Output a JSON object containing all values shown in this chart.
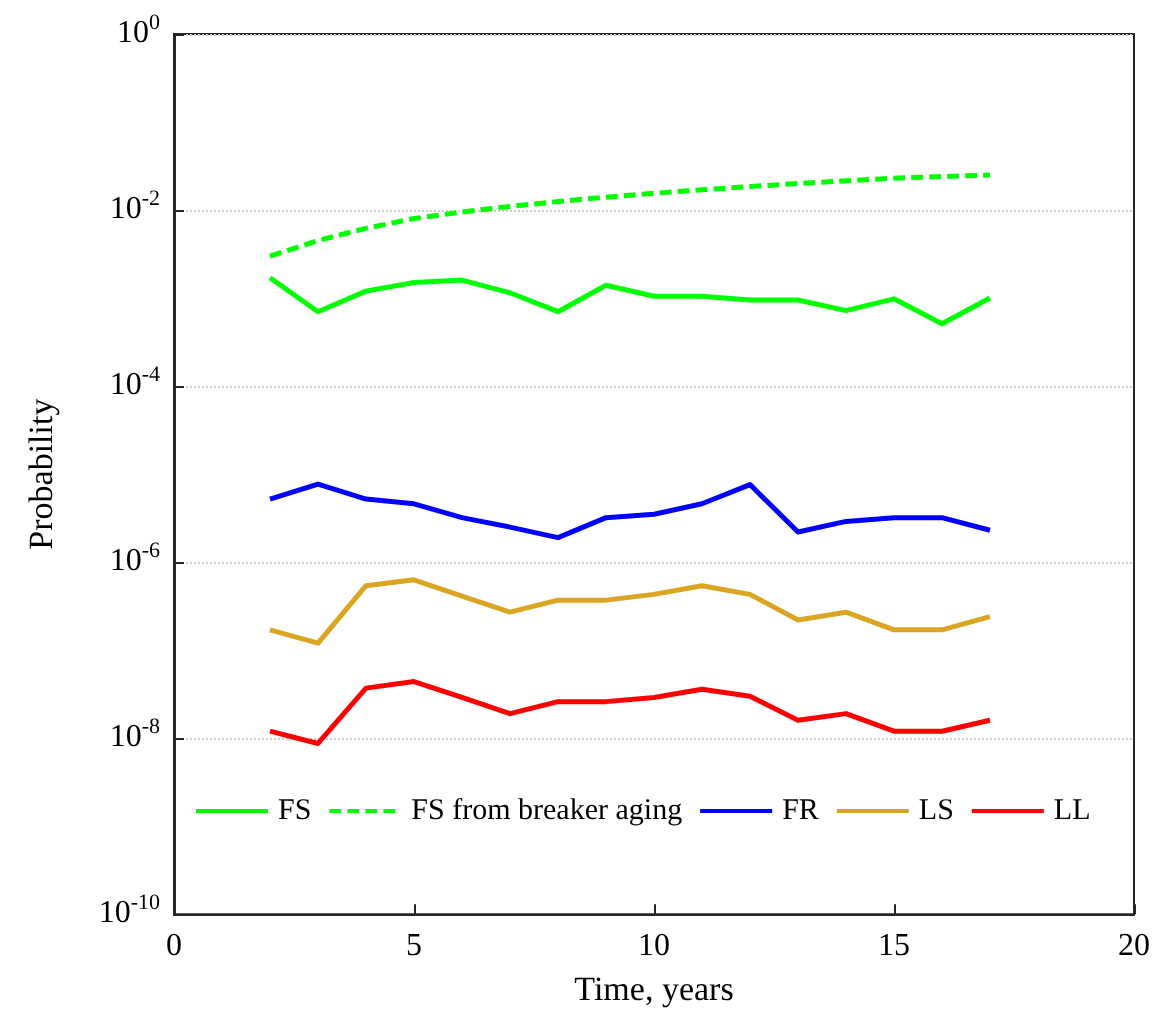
{
  "chart_data": {
    "type": "line",
    "xlabel": "Time, years",
    "ylabel": "Probability",
    "x": [
      2,
      3,
      4,
      5,
      6,
      7,
      8,
      9,
      10,
      11,
      12,
      13,
      14,
      15,
      16,
      17
    ],
    "xlim": [
      0,
      20
    ],
    "xticks": [
      0,
      5,
      10,
      15,
      20
    ],
    "log": "y",
    "ylim": [
      1e-10,
      1
    ],
    "yticks": [
      {
        "value": 1e-10,
        "label": "10$^{-10}$"
      },
      {
        "value": 1e-08,
        "label": "10$^{-8}$"
      },
      {
        "value": 1e-06,
        "label": "10$^{-6}$"
      },
      {
        "value": 0.0001,
        "label": "10$^{-4}$"
      },
      {
        "value": 0.01,
        "label": "10$^{-2}$"
      },
      {
        "value": 1,
        "label": "10$^{0}$"
      }
    ],
    "grid": "y",
    "legend": "bottom",
    "marker": "none",
    "series": [
      {
        "name": "FS",
        "color": "#00ff00",
        "line_style": "solid",
        "values": [
          0.0017,
          0.0007,
          0.0012,
          0.0015,
          0.0016,
          0.00115,
          0.0007,
          0.0014,
          0.00105,
          0.00105,
          0.00095,
          0.00095,
          0.00072,
          0.00098,
          0.00051,
          0.001
        ]
      },
      {
        "name": "FS from breaker aging",
        "color": "#00ff00",
        "line_style": "dashed",
        "values": [
          0.003,
          0.0045,
          0.0062,
          0.008,
          0.0095,
          0.011,
          0.0125,
          0.014,
          0.0155,
          0.017,
          0.0185,
          0.02,
          0.0215,
          0.023,
          0.024,
          0.025
        ]
      },
      {
        "name": "FR",
        "color": "#0000ff",
        "line_style": "solid",
        "values": [
          5.2e-06,
          7.7e-06,
          5.2e-06,
          4.6e-06,
          3.2e-06,
          2.5e-06,
          1.9e-06,
          3.2e-06,
          3.5e-06,
          4.6e-06,
          7.6e-06,
          2.2e-06,
          2.9e-06,
          3.2e-06,
          3.2e-06,
          2.3e-06
        ]
      },
      {
        "name": "LS",
        "color": "#daa520",
        "line_style": "solid",
        "values": [
          1.7e-07,
          1.2e-07,
          5.4e-07,
          6.3e-07,
          4.1e-07,
          2.7e-07,
          3.7e-07,
          3.7e-07,
          4.3e-07,
          5.4e-07,
          4.3e-07,
          2.2e-07,
          2.7e-07,
          1.7e-07,
          1.7e-07,
          2.4e-07
        ]
      },
      {
        "name": "LL",
        "color": "#ff0000",
        "line_style": "solid",
        "values": [
          1.2e-08,
          8.7e-09,
          3.7e-08,
          4.4e-08,
          2.9e-08,
          1.9e-08,
          2.6e-08,
          2.6e-08,
          2.9e-08,
          3.6e-08,
          3e-08,
          1.6e-08,
          1.9e-08,
          1.2e-08,
          1.2e-08,
          1.6e-08
        ]
      }
    ]
  }
}
